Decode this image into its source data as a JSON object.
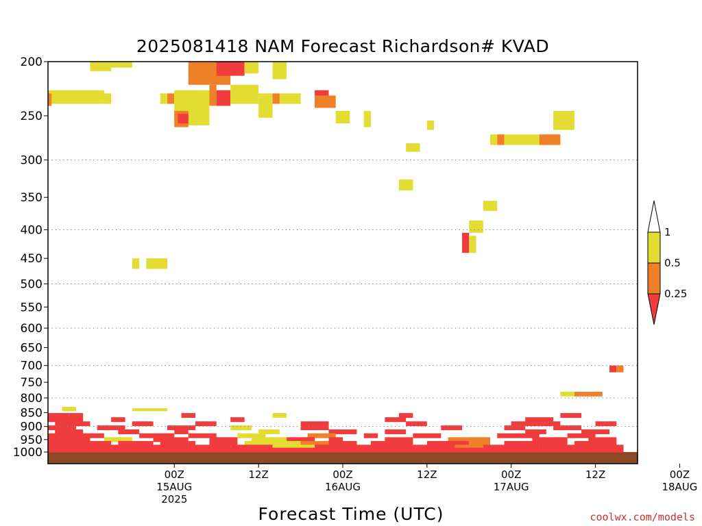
{
  "chart_data": {
    "type": "heatmap",
    "title": "2025081418 NAM Forecast Richardson# KVAD",
    "xlabel": "Forecast Time (UTC)",
    "ylabel": "",
    "credit": "coolwx.com/models",
    "y_axis": {
      "scale": "log-pressure",
      "reversed": true,
      "range": [
        1000,
        200
      ],
      "ticks": [
        200,
        250,
        300,
        350,
        400,
        450,
        500,
        550,
        600,
        650,
        700,
        750,
        800,
        850,
        900,
        950,
        1000
      ],
      "dotted_gridlines": [
        300,
        400,
        500,
        600,
        700,
        800,
        900
      ]
    },
    "x_axis": {
      "range_hours": [
        -18,
        66
      ],
      "ticks": [
        {
          "hour": 0,
          "lines": [
            "00Z",
            "15AUG",
            "2025"
          ]
        },
        {
          "hour": 12,
          "lines": [
            "12Z"
          ]
        },
        {
          "hour": 24,
          "lines": [
            "00Z",
            "16AUG"
          ]
        },
        {
          "hour": 36,
          "lines": [
            "12Z"
          ]
        },
        {
          "hour": 48,
          "lines": [
            "00Z",
            "17AUG"
          ]
        },
        {
          "hour": 60,
          "lines": [
            "12Z"
          ]
        },
        {
          "hour": 72,
          "lines": [
            "00Z",
            "18AUG"
          ]
        }
      ]
    },
    "colorbar": {
      "bins": [
        {
          "label": "<0.25",
          "color": "#f03c3c"
        },
        {
          "label": "0.25-0.5",
          "color": "#ee8028"
        },
        {
          "label": "0.5-1",
          "color": "#e3dc32"
        },
        {
          "label": ">1",
          "color": "#ffffff"
        }
      ],
      "tick_labels": [
        "1",
        "0.5",
        "0.25"
      ]
    },
    "ground_color": "#8b4a25",
    "regions": [
      {
        "bin": 2,
        "h": [
          -12,
          -9
        ],
        "p": [
          200,
          208
        ]
      },
      {
        "bin": 2,
        "h": [
          -12,
          -6
        ],
        "p": [
          200,
          205
        ]
      },
      {
        "bin": 1,
        "h": [
          2,
          8
        ],
        "p": [
          200,
          220
        ]
      },
      {
        "bin": 0,
        "h": [
          6,
          10
        ],
        "p": [
          200,
          212
        ]
      },
      {
        "bin": 2,
        "h": [
          10,
          12
        ],
        "p": [
          200,
          210
        ]
      },
      {
        "bin": 2,
        "h": [
          14,
          16
        ],
        "p": [
          200,
          215
        ]
      },
      {
        "bin": 2,
        "h": [
          -18,
          -10
        ],
        "p": [
          225,
          238
        ]
      },
      {
        "bin": 1,
        "h": [
          -18,
          -17.5
        ],
        "p": [
          228,
          240
        ]
      },
      {
        "bin": 2,
        "h": [
          -10,
          -9
        ],
        "p": [
          228,
          238
        ]
      },
      {
        "bin": 2,
        "h": [
          -2,
          -1
        ],
        "p": [
          228,
          238
        ]
      },
      {
        "bin": 1,
        "h": [
          -1,
          0
        ],
        "p": [
          228,
          238
        ]
      },
      {
        "bin": 2,
        "h": [
          0,
          5
        ],
        "p": [
          225,
          260
        ]
      },
      {
        "bin": 1,
        "h": [
          0,
          2
        ],
        "p": [
          245,
          262
        ]
      },
      {
        "bin": 0,
        "h": [
          0.5,
          2
        ],
        "p": [
          248,
          258
        ]
      },
      {
        "bin": 1,
        "h": [
          5,
          6
        ],
        "p": [
          220,
          240
        ]
      },
      {
        "bin": 0,
        "h": [
          6,
          8
        ],
        "p": [
          225,
          240
        ]
      },
      {
        "bin": 2,
        "h": [
          8,
          12
        ],
        "p": [
          220,
          238
        ]
      },
      {
        "bin": 2,
        "h": [
          12,
          14
        ],
        "p": [
          228,
          252
        ]
      },
      {
        "bin": 1,
        "h": [
          14,
          15
        ],
        "p": [
          228,
          238
        ]
      },
      {
        "bin": 2,
        "h": [
          15,
          18
        ],
        "p": [
          228,
          238
        ]
      },
      {
        "bin": 0,
        "h": [
          20,
          22
        ],
        "p": [
          225,
          238
        ]
      },
      {
        "bin": 1,
        "h": [
          20,
          23
        ],
        "p": [
          230,
          242
        ]
      },
      {
        "bin": 2,
        "h": [
          23,
          25
        ],
        "p": [
          245,
          258
        ]
      },
      {
        "bin": 2,
        "h": [
          27,
          28
        ],
        "p": [
          245,
          262
        ]
      },
      {
        "bin": 2,
        "h": [
          33,
          35
        ],
        "p": [
          280,
          290
        ]
      },
      {
        "bin": 2,
        "h": [
          36,
          37
        ],
        "p": [
          255,
          265
        ]
      },
      {
        "bin": 2,
        "h": [
          45,
          46
        ],
        "p": [
          270,
          282
        ]
      },
      {
        "bin": 1,
        "h": [
          46,
          47
        ],
        "p": [
          270,
          282
        ]
      },
      {
        "bin": 2,
        "h": [
          47,
          52
        ],
        "p": [
          270,
          282
        ]
      },
      {
        "bin": 1,
        "h": [
          52,
          55
        ],
        "p": [
          270,
          282
        ]
      },
      {
        "bin": 2,
        "h": [
          54,
          57
        ],
        "p": [
          245,
          265
        ]
      },
      {
        "bin": 2,
        "h": [
          32,
          34
        ],
        "p": [
          325,
          340
        ]
      },
      {
        "bin": 2,
        "h": [
          44,
          46
        ],
        "p": [
          355,
          370
        ]
      },
      {
        "bin": 2,
        "h": [
          42,
          44
        ],
        "p": [
          385,
          405
        ]
      },
      {
        "bin": 0,
        "h": [
          41,
          42
        ],
        "p": [
          405,
          440
        ]
      },
      {
        "bin": 2,
        "h": [
          42,
          43
        ],
        "p": [
          410,
          440
        ]
      },
      {
        "bin": 2,
        "h": [
          -6,
          -5
        ],
        "p": [
          450,
          470
        ]
      },
      {
        "bin": 2,
        "h": [
          -4,
          -1
        ],
        "p": [
          450,
          470
        ]
      },
      {
        "bin": 0,
        "h": [
          62,
          63
        ],
        "p": [
          700,
          720
        ]
      },
      {
        "bin": 1,
        "h": [
          63,
          64
        ],
        "p": [
          700,
          720
        ]
      },
      {
        "bin": 2,
        "h": [
          55,
          58
        ],
        "p": [
          780,
          795
        ]
      },
      {
        "bin": 1,
        "h": [
          57,
          61
        ],
        "p": [
          780,
          795
        ]
      },
      {
        "bin": 2,
        "h": [
          -16,
          -14
        ],
        "p": [
          830,
          845
        ]
      },
      {
        "bin": 2,
        "h": [
          -6,
          -1
        ],
        "p": [
          835,
          845
        ]
      }
    ],
    "low_rows": [
      {
        "p": 860,
        "segs": [
          [
            -18,
            -15,
            0
          ],
          [
            -15,
            -13,
            0
          ],
          [
            1,
            3,
            0
          ],
          [
            14,
            16,
            2
          ],
          [
            32,
            34,
            0
          ],
          [
            55,
            58,
            0
          ]
        ]
      },
      {
        "p": 875,
        "segs": [
          [
            -18,
            -13,
            0
          ],
          [
            -9,
            -7,
            0
          ],
          [
            8,
            10,
            0
          ],
          [
            30,
            33,
            0
          ],
          [
            50,
            54,
            0
          ]
        ]
      },
      {
        "p": 890,
        "segs": [
          [
            -17,
            -12,
            0
          ],
          [
            -6,
            -3,
            0
          ],
          [
            3,
            6,
            0
          ],
          [
            18,
            22,
            0
          ],
          [
            33,
            36,
            0
          ],
          [
            48,
            55,
            0
          ],
          [
            60,
            63,
            0
          ]
        ]
      },
      {
        "p": 905,
        "segs": [
          [
            -18,
            -14,
            0
          ],
          [
            -11,
            -7,
            0
          ],
          [
            -1,
            3,
            0
          ],
          [
            8,
            11,
            2
          ],
          [
            18,
            22,
            0
          ],
          [
            38,
            41,
            0
          ],
          [
            47,
            50,
            0
          ],
          [
            54,
            58,
            0
          ]
        ]
      },
      {
        "p": 920,
        "segs": [
          [
            -17,
            -13,
            0
          ],
          [
            -8,
            -5,
            0
          ],
          [
            0,
            2,
            0
          ],
          [
            12,
            15,
            2
          ],
          [
            22,
            26,
            0
          ],
          [
            30,
            33,
            0
          ],
          [
            50,
            53,
            0
          ],
          [
            58,
            62,
            0
          ]
        ]
      },
      {
        "p": 935,
        "segs": [
          [
            -18,
            -10,
            0
          ],
          [
            -5,
            0,
            0
          ],
          [
            2,
            6,
            0
          ],
          [
            9,
            13,
            2
          ],
          [
            19,
            23,
            1
          ],
          [
            27,
            29,
            0
          ],
          [
            34,
            38,
            0
          ],
          [
            46,
            52,
            0
          ],
          [
            56,
            60,
            0
          ]
        ]
      },
      {
        "p": 950,
        "segs": [
          [
            -18,
            -12,
            0
          ],
          [
            -10,
            -6,
            2
          ],
          [
            -3,
            2,
            0
          ],
          [
            5,
            9,
            0
          ],
          [
            11,
            16,
            2
          ],
          [
            16,
            20,
            0
          ],
          [
            22,
            24,
            0
          ],
          [
            30,
            34,
            0
          ],
          [
            39,
            45,
            1
          ],
          [
            51,
            56,
            0
          ],
          [
            59,
            63,
            0
          ]
        ]
      },
      {
        "p": 965,
        "segs": [
          [
            -18,
            -9,
            0
          ],
          [
            -8,
            -3,
            0
          ],
          [
            -2,
            3,
            0
          ],
          [
            5,
            9,
            0
          ],
          [
            10,
            18,
            2
          ],
          [
            18,
            22,
            1
          ],
          [
            22,
            26,
            0
          ],
          [
            28,
            34,
            0
          ],
          [
            36,
            42,
            0
          ],
          [
            42,
            45,
            1
          ],
          [
            47,
            56,
            0
          ],
          [
            57,
            63,
            0
          ]
        ]
      },
      {
        "p": 980,
        "segs": [
          [
            -18,
            -3,
            0
          ],
          [
            -3,
            2,
            0
          ],
          [
            2,
            8,
            0
          ],
          [
            8,
            14,
            0
          ],
          [
            14,
            20,
            2
          ],
          [
            20,
            32,
            0
          ],
          [
            32,
            40,
            0
          ],
          [
            40,
            44,
            1
          ],
          [
            44,
            52,
            0
          ],
          [
            52,
            60,
            0
          ],
          [
            60,
            64,
            0
          ]
        ]
      },
      {
        "p": 992,
        "segs": [
          [
            -18,
            64,
            0
          ]
        ]
      }
    ]
  }
}
